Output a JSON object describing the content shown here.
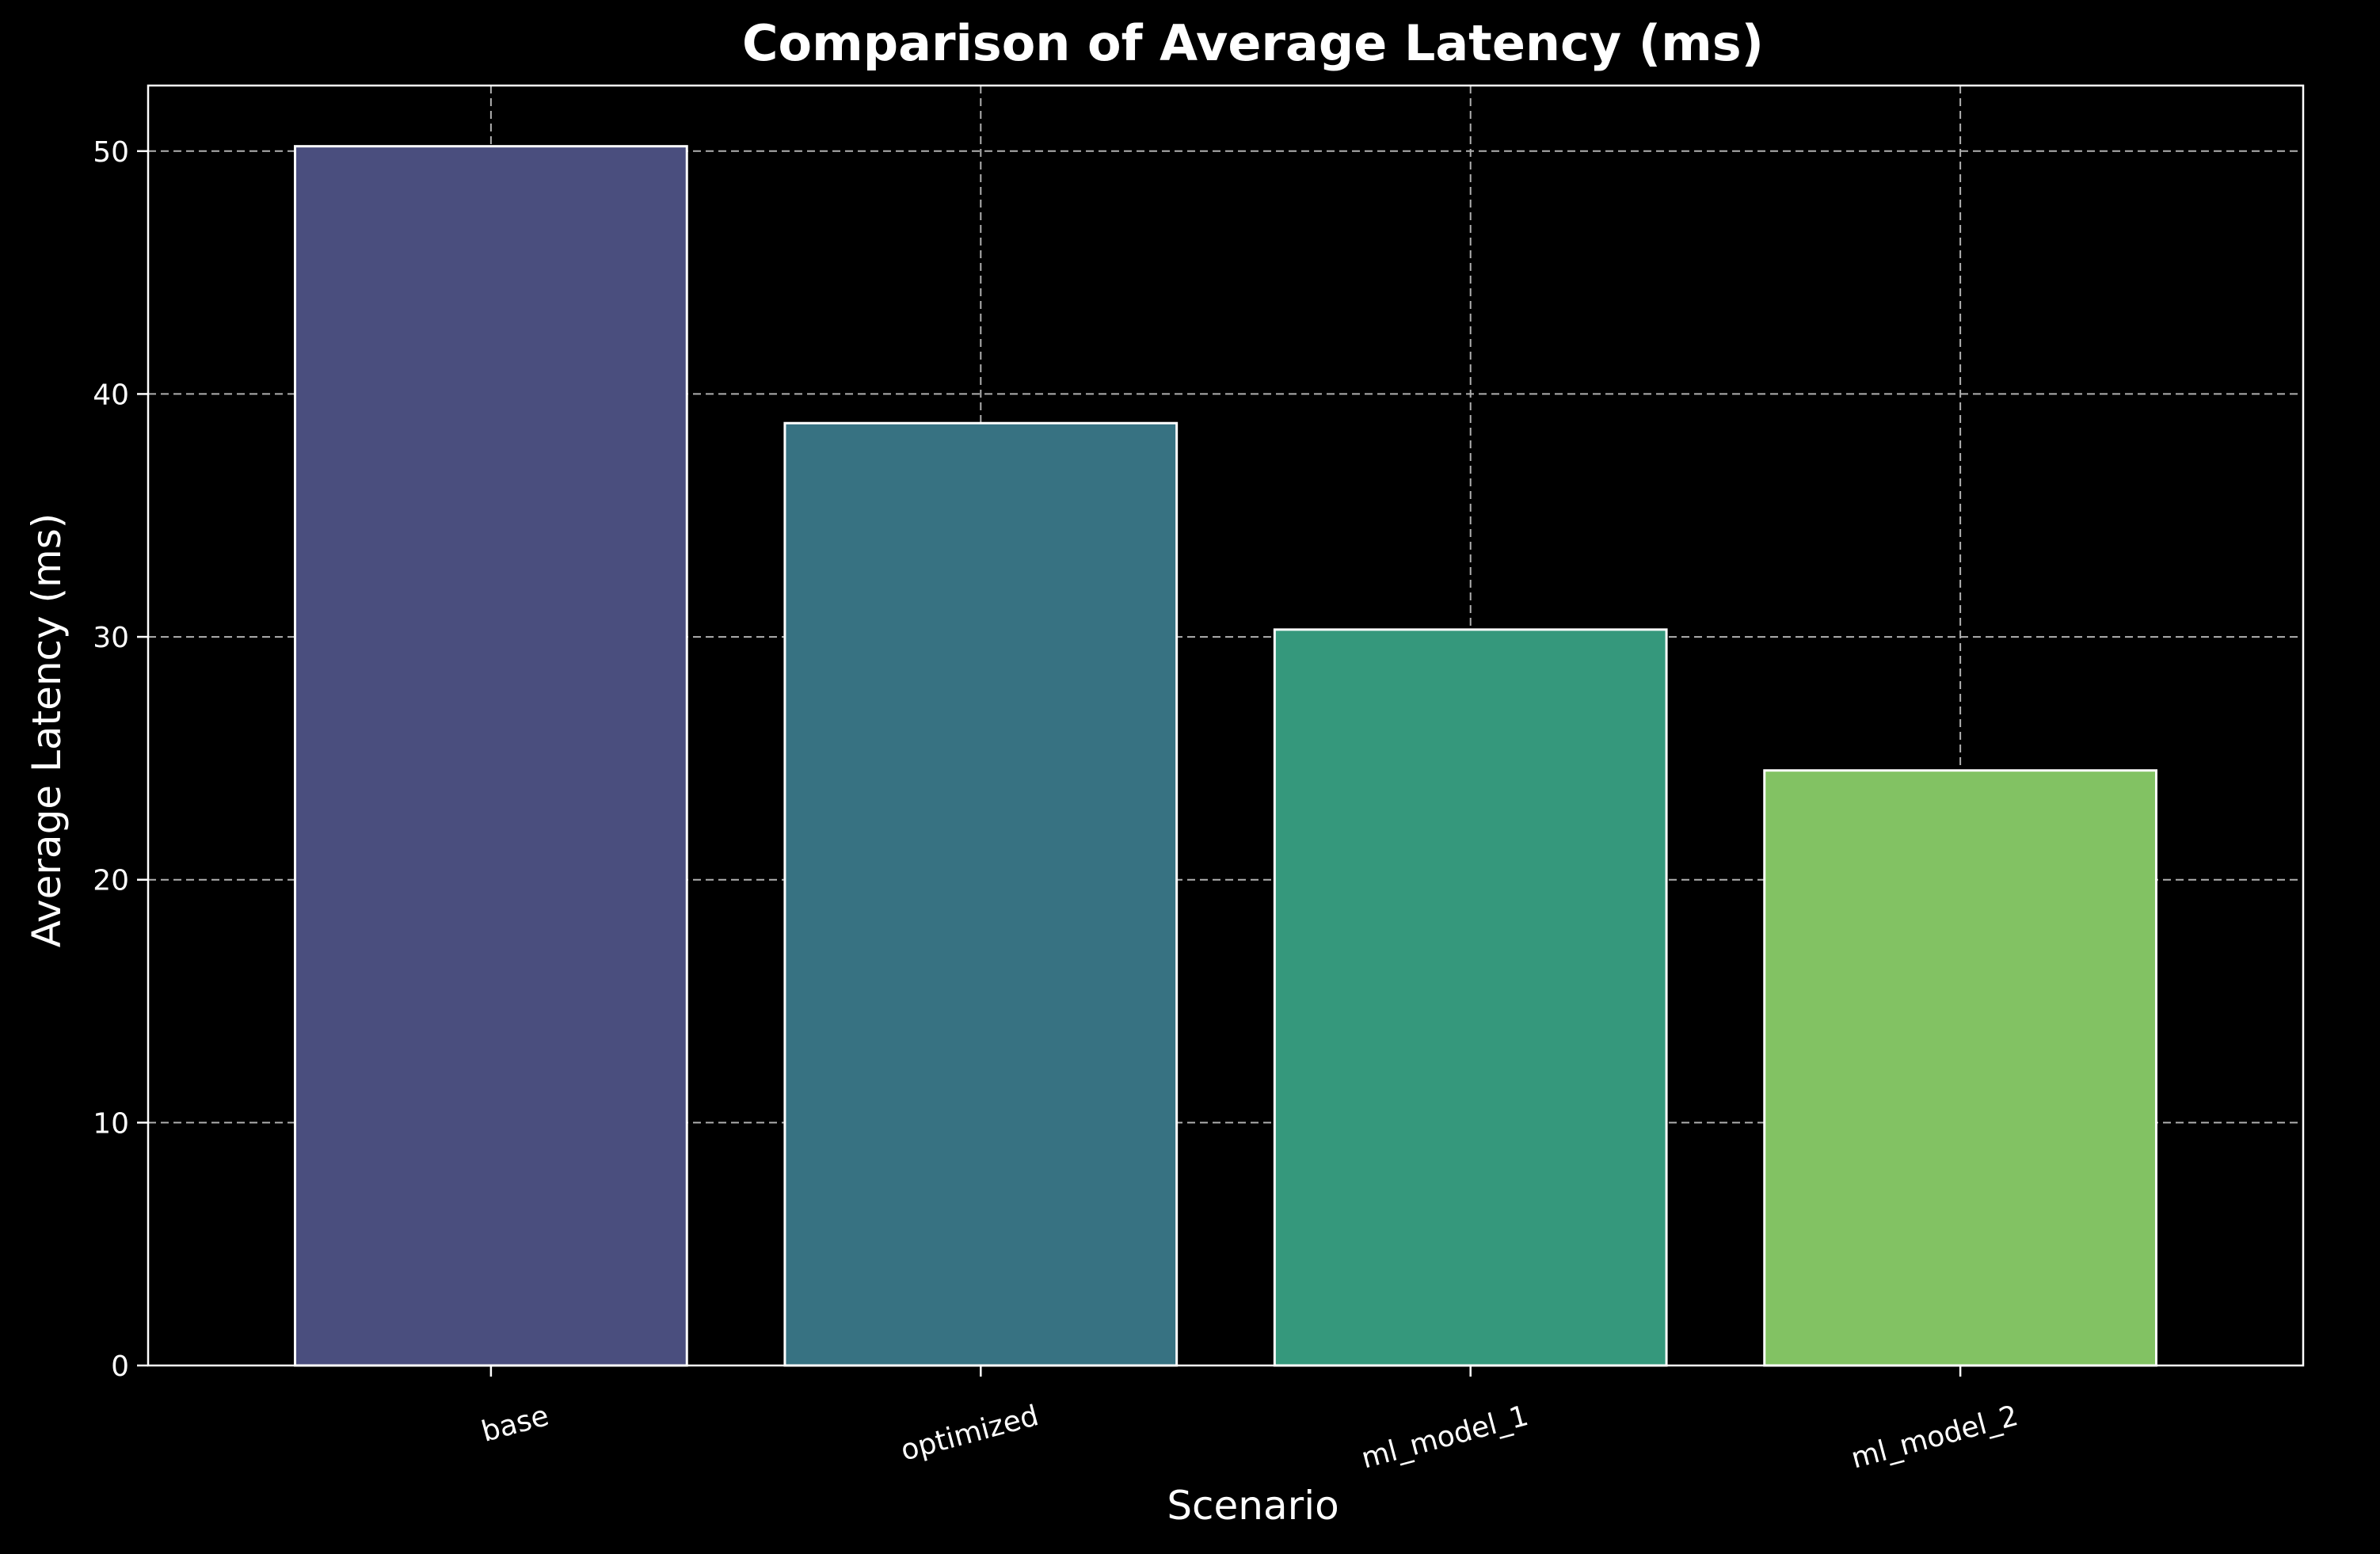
{
  "chart_data": {
    "type": "bar",
    "title": "Comparison of Average Latency (ms)",
    "xlabel": "Scenario",
    "ylabel": "Average Latency (ms)",
    "categories": [
      "base",
      "optimized",
      "ml_model_1",
      "ml_model_2"
    ],
    "values": [
      50.2,
      38.8,
      30.3,
      24.5
    ],
    "bar_colors": [
      "#4a4e7e",
      "#377282",
      "#35987c",
      "#82c263"
    ],
    "ylim": [
      0,
      52.7
    ],
    "yticks": [
      0,
      10,
      20,
      30,
      40,
      50
    ],
    "ytick_labels": [
      "0",
      "10",
      "20",
      "30",
      "40",
      "50"
    ],
    "grid": true,
    "grid_style": "dashed",
    "background": "#000000",
    "foreground": "#ffffff"
  }
}
